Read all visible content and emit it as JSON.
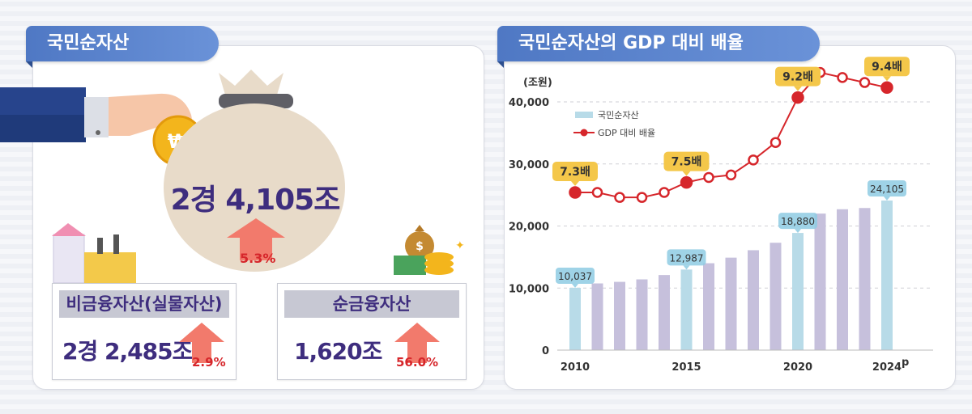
{
  "left": {
    "title": "국민순자산",
    "total_value": "2경 4,105조",
    "total_change": "5.3%",
    "non_financial": {
      "label": "비금융자산(실물자산)",
      "value": "2경 2,485조",
      "change": "2.9%"
    },
    "net_financial": {
      "label": "순금융자산",
      "value": "1,620조",
      "change": "56.0%"
    }
  },
  "right": {
    "title": "국민순자산의 GDP 대비 배율"
  },
  "colors": {
    "bar_light": "#b8dbe8",
    "bar_purple": "#c6c0dc",
    "line": "#d6262b",
    "callout": "#f4c74a",
    "label_box": "#8ecbe3"
  },
  "chart_data": {
    "type": "bar",
    "unit_label": "(조원)",
    "x": [
      2010,
      2011,
      2012,
      2013,
      2014,
      2015,
      2016,
      2017,
      2018,
      2019,
      2020,
      2021,
      2022,
      2023,
      2024
    ],
    "x_tick_labels": [
      "2010",
      "2015",
      "2020",
      "2024"
    ],
    "x_tick_suffix": "p",
    "ylim": [
      0,
      40000
    ],
    "y_ticks": [
      "0",
      "10,000",
      "20,000",
      "30,000",
      "40,000"
    ],
    "y_tick_values": [
      0,
      10000,
      20000,
      30000,
      40000
    ],
    "grid": true,
    "legend_position": "top-left",
    "series": [
      {
        "name": "국민순자산",
        "type": "bar",
        "values": [
          10037,
          10750,
          11000,
          11400,
          12100,
          12987,
          14000,
          14900,
          16100,
          17300,
          18880,
          22000,
          22700,
          22900,
          24105
        ],
        "highlight_years": [
          2010,
          2015,
          2020,
          2024
        ],
        "labels": [
          "10,037",
          "12,987",
          "18,880",
          "24,105"
        ]
      },
      {
        "name": "GDP 대비 배율",
        "type": "line",
        "values": [
          7.3,
          7.3,
          7.2,
          7.2,
          7.3,
          7.5,
          7.6,
          7.65,
          7.95,
          8.3,
          9.2,
          9.7,
          9.6,
          9.5,
          9.4
        ],
        "callout_years": [
          2010,
          2015,
          2020,
          2024
        ],
        "callouts": [
          "7.3배",
          "7.5배",
          "9.2배",
          "9.4배"
        ]
      }
    ]
  }
}
